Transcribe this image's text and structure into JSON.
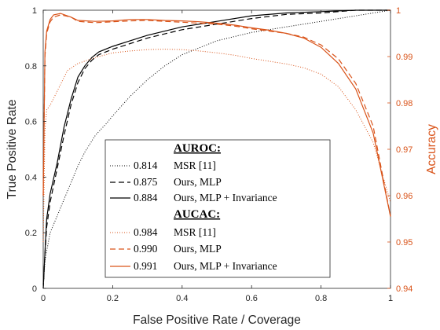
{
  "chart_data": {
    "type": "line",
    "xlabel": "False Positive Rate / Coverage",
    "ylabel_left": "True Positive Rate",
    "ylabel_right": "Accuracy",
    "xlim": [
      0,
      1
    ],
    "ylim_left": [
      0,
      1
    ],
    "ylim_right": [
      0.94,
      1
    ],
    "x_ticks": [
      "0",
      "0.2",
      "0.4",
      "0.6",
      "0.8",
      "1"
    ],
    "left_ticks": [
      "0",
      "0.2",
      "0.4",
      "0.6",
      "0.8",
      "1"
    ],
    "right_ticks": [
      "0.94",
      "0.95",
      "0.96",
      "0.97",
      "0.98",
      "0.99",
      "1"
    ],
    "colors": {
      "roc": "#000000",
      "acc": "#d95319"
    },
    "legend": {
      "placement": "bottom-center",
      "roc_title": "AUROC:",
      "acc_title": "AUCAC:",
      "roc_entries": [
        {
          "score": "0.814",
          "name": "MSR [11]",
          "dash": "dotted"
        },
        {
          "score": "0.875",
          "name": "Ours, MLP",
          "dash": "dashed"
        },
        {
          "score": "0.884",
          "name": "Ours, MLP + Invariance",
          "dash": "solid"
        }
      ],
      "acc_entries": [
        {
          "score": "0.984",
          "name": "MSR [11]",
          "dash": "dotted"
        },
        {
          "score": "0.990",
          "name": "Ours, MLP",
          "dash": "dashed"
        },
        {
          "score": "0.991",
          "name": "Ours, MLP + Invariance",
          "dash": "solid"
        }
      ]
    },
    "roc_series": [
      {
        "dash": "dotted",
        "axis": "left",
        "x": [
          0,
          0.005,
          0.02,
          0.04,
          0.06,
          0.08,
          0.1,
          0.12,
          0.15,
          0.18,
          0.2,
          0.25,
          0.3,
          0.35,
          0.4,
          0.5,
          0.6,
          0.7,
          0.8,
          0.9,
          1.0
        ],
        "y": [
          0,
          0.1,
          0.2,
          0.26,
          0.32,
          0.38,
          0.44,
          0.49,
          0.55,
          0.59,
          0.62,
          0.69,
          0.75,
          0.8,
          0.84,
          0.89,
          0.92,
          0.94,
          0.96,
          0.98,
          1.0
        ]
      },
      {
        "dash": "dashed",
        "axis": "left",
        "x": [
          0,
          0.005,
          0.01,
          0.02,
          0.04,
          0.06,
          0.08,
          0.1,
          0.12,
          0.14,
          0.16,
          0.2,
          0.25,
          0.3,
          0.4,
          0.5,
          0.6,
          0.7,
          0.8,
          0.9,
          1.0
        ],
        "y": [
          0,
          0.12,
          0.22,
          0.31,
          0.43,
          0.55,
          0.66,
          0.74,
          0.79,
          0.82,
          0.84,
          0.86,
          0.88,
          0.9,
          0.93,
          0.95,
          0.97,
          0.985,
          0.99,
          1.0,
          1.0
        ]
      },
      {
        "dash": "solid",
        "axis": "left",
        "x": [
          0,
          0.005,
          0.01,
          0.02,
          0.04,
          0.06,
          0.08,
          0.1,
          0.12,
          0.14,
          0.16,
          0.2,
          0.25,
          0.3,
          0.4,
          0.5,
          0.6,
          0.7,
          0.8,
          0.9,
          1.0
        ],
        "y": [
          0,
          0.13,
          0.25,
          0.34,
          0.45,
          0.58,
          0.68,
          0.76,
          0.8,
          0.83,
          0.85,
          0.87,
          0.89,
          0.91,
          0.94,
          0.96,
          0.98,
          0.99,
          0.995,
          1.0,
          1.0
        ]
      }
    ],
    "acc_series": [
      {
        "dash": "dotted",
        "axis": "right",
        "x": [
          0,
          0.005,
          0.01,
          0.02,
          0.03,
          0.05,
          0.07,
          0.1,
          0.15,
          0.2,
          0.25,
          0.3,
          0.35,
          0.4,
          0.45,
          0.5,
          0.55,
          0.6,
          0.65,
          0.7,
          0.75,
          0.8,
          0.85,
          0.9,
          0.95,
          1.0
        ],
        "y": [
          0.95,
          0.974,
          0.9785,
          0.9795,
          0.981,
          0.984,
          0.987,
          0.9885,
          0.9898,
          0.9908,
          0.9912,
          0.9915,
          0.9916,
          0.9915,
          0.9912,
          0.9908,
          0.9903,
          0.9896,
          0.989,
          0.9884,
          0.9876,
          0.9862,
          0.9835,
          0.9785,
          0.9715,
          0.9585
        ]
      },
      {
        "dash": "dashed",
        "axis": "right",
        "x": [
          0,
          0.005,
          0.01,
          0.02,
          0.03,
          0.05,
          0.08,
          0.1,
          0.15,
          0.2,
          0.25,
          0.3,
          0.35,
          0.4,
          0.45,
          0.5,
          0.55,
          0.6,
          0.65,
          0.7,
          0.75,
          0.8,
          0.85,
          0.9,
          0.95,
          1.0
        ],
        "y": [
          0.96,
          0.99,
          0.995,
          0.9975,
          0.9985,
          0.999,
          0.9985,
          0.9976,
          0.9973,
          0.9975,
          0.9977,
          0.9978,
          0.9976,
          0.9974,
          0.9972,
          0.997,
          0.9966,
          0.996,
          0.9955,
          0.995,
          0.9942,
          0.9925,
          0.9895,
          0.9842,
          0.975,
          0.9555
        ]
      },
      {
        "dash": "solid",
        "axis": "right",
        "x": [
          0,
          0.005,
          0.01,
          0.02,
          0.03,
          0.05,
          0.08,
          0.1,
          0.15,
          0.2,
          0.25,
          0.3,
          0.35,
          0.4,
          0.45,
          0.5,
          0.55,
          0.6,
          0.65,
          0.7,
          0.75,
          0.8,
          0.85,
          0.9,
          0.95,
          1.0
        ],
        "y": [
          0.96,
          0.991,
          0.9955,
          0.998,
          0.999,
          0.9993,
          0.9985,
          0.9978,
          0.9976,
          0.9977,
          0.998,
          0.998,
          0.9978,
          0.9977,
          0.9975,
          0.9972,
          0.9968,
          0.9962,
          0.9957,
          0.995,
          0.994,
          0.992,
          0.9885,
          0.983,
          0.9735,
          0.9555
        ]
      }
    ]
  }
}
